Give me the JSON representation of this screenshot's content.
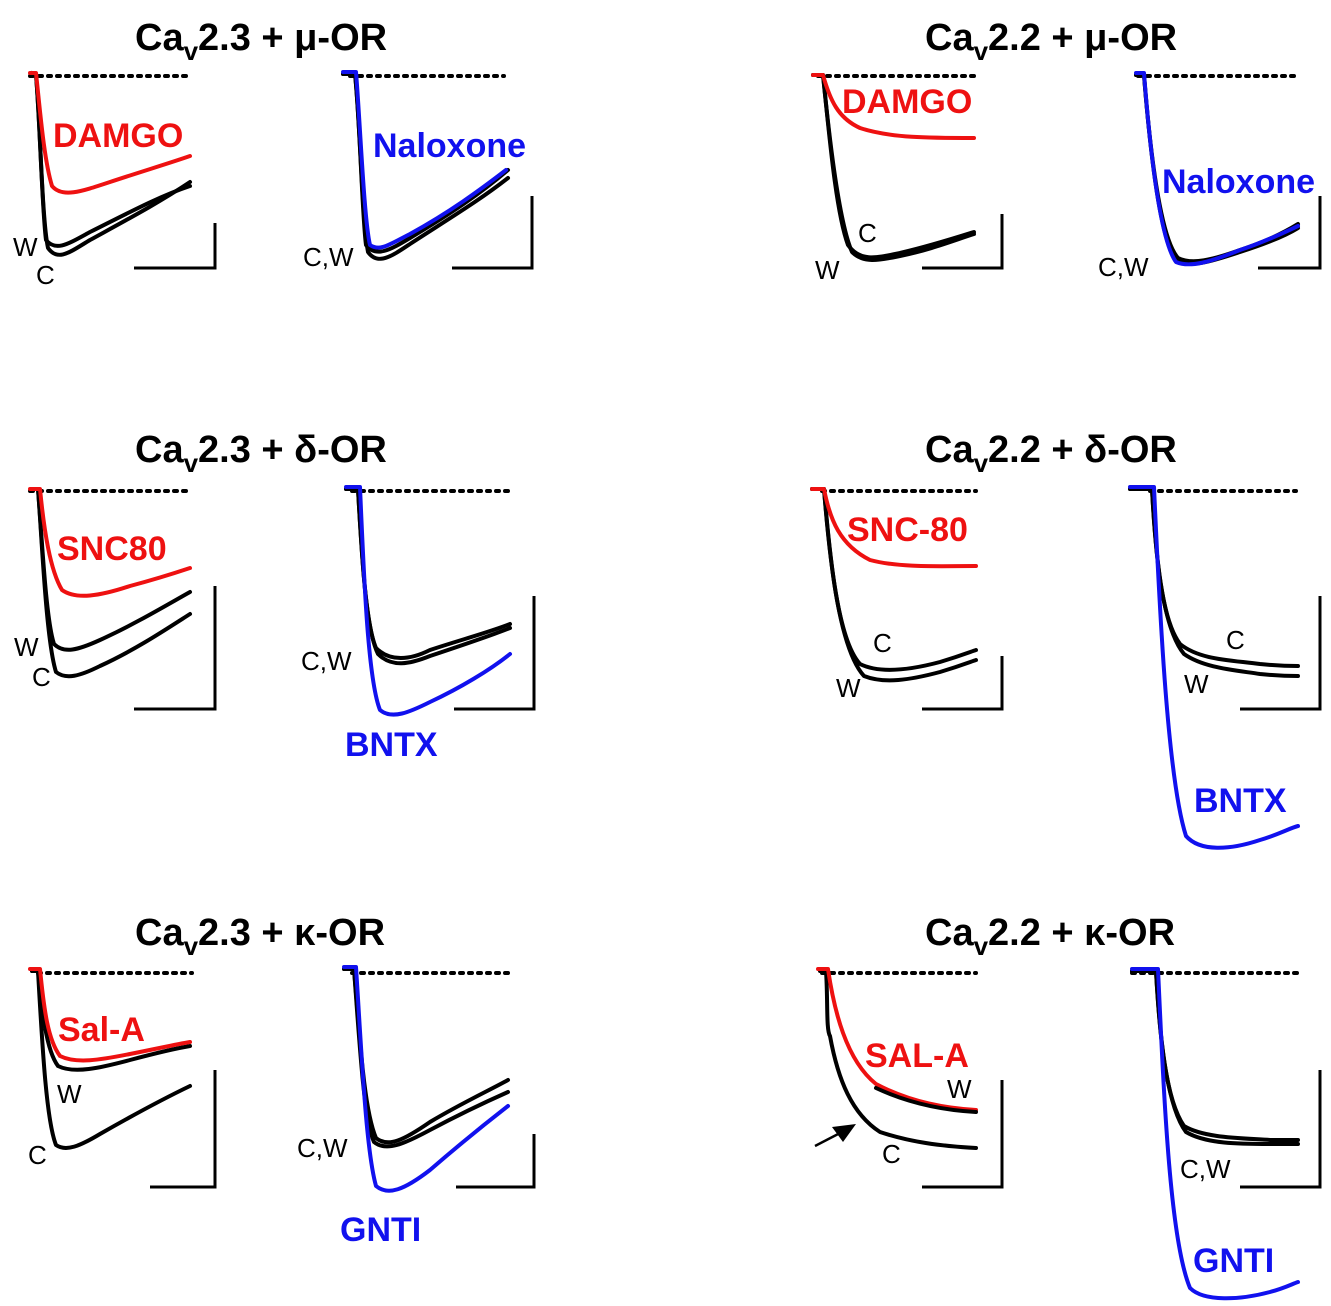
{
  "colors": {
    "control": "#000000",
    "agonist": "#ee1111",
    "antagonist": "#1111ee"
  },
  "panels": [
    {
      "id": "cav23-mu",
      "title_base": "Ca",
      "title_sub": "v",
      "title_rest": "2.3 + μ-OR",
      "agonist": "DAMGO",
      "antagonist": "Naloxone",
      "agonist_labels": [
        "W",
        "C"
      ],
      "antagonist_label": "C,W"
    },
    {
      "id": "cav22-mu",
      "title_base": "Ca",
      "title_sub": "v",
      "title_rest": "2.2 + μ-OR",
      "agonist": "DAMGO",
      "antagonist": "Naloxone",
      "agonist_labels": [
        "C",
        "W"
      ],
      "antagonist_label": "C,W"
    },
    {
      "id": "cav23-delta",
      "title_base": "Ca",
      "title_sub": "v",
      "title_rest": "2.3 + δ-OR",
      "agonist": "SNC80",
      "antagonist": "BNTX",
      "agonist_labels": [
        "W",
        "C"
      ],
      "antagonist_label": "C,W"
    },
    {
      "id": "cav22-delta",
      "title_base": "Ca",
      "title_sub": "v",
      "title_rest": "2.2 + δ-OR",
      "agonist": "SNC-80",
      "antagonist": "BNTX",
      "agonist_labels": [
        "C",
        "W"
      ],
      "antagonist_labels": [
        "C",
        "W"
      ]
    },
    {
      "id": "cav23-kappa",
      "title_base": "Ca",
      "title_sub": "v",
      "title_rest": "2.3 + κ-OR",
      "agonist": "Sal-A",
      "antagonist": "GNTI",
      "agonist_labels": [
        "W",
        "C"
      ],
      "antagonist_label": "C,W"
    },
    {
      "id": "cav22-kappa",
      "title_base": "Ca",
      "title_sub": "v",
      "title_rest": "2.2 + κ-OR",
      "agonist": "SAL-A",
      "antagonist": "GNTI",
      "agonist_labels": [
        "W",
        "C"
      ],
      "antagonist_label": "C,W"
    }
  ],
  "chart_data": {
    "type": "line",
    "description_units": "normalized current traces (0 = baseline, 1 = control peak)",
    "panels": [
      {
        "id": "cav23-mu",
        "agonist_peak_relative": 0.65,
        "antagonist_peak_relative": 1.0
      },
      {
        "id": "cav22-mu",
        "agonist_peak_relative": 0.35,
        "antagonist_peak_relative": 1.0
      },
      {
        "id": "cav23-delta",
        "agonist_peak_relative": 0.6,
        "antagonist_peak_relative": 1.25
      },
      {
        "id": "cav22-delta",
        "agonist_peak_relative": 0.45,
        "antagonist_peak_relative": 2.0
      },
      {
        "id": "cav23-kappa",
        "agonist_peak_relative": 0.4,
        "antagonist_peak_relative": 1.3
      },
      {
        "id": "cav22-kappa",
        "agonist_peak_relative": 0.75,
        "antagonist_peak_relative": 2.0
      }
    ]
  }
}
